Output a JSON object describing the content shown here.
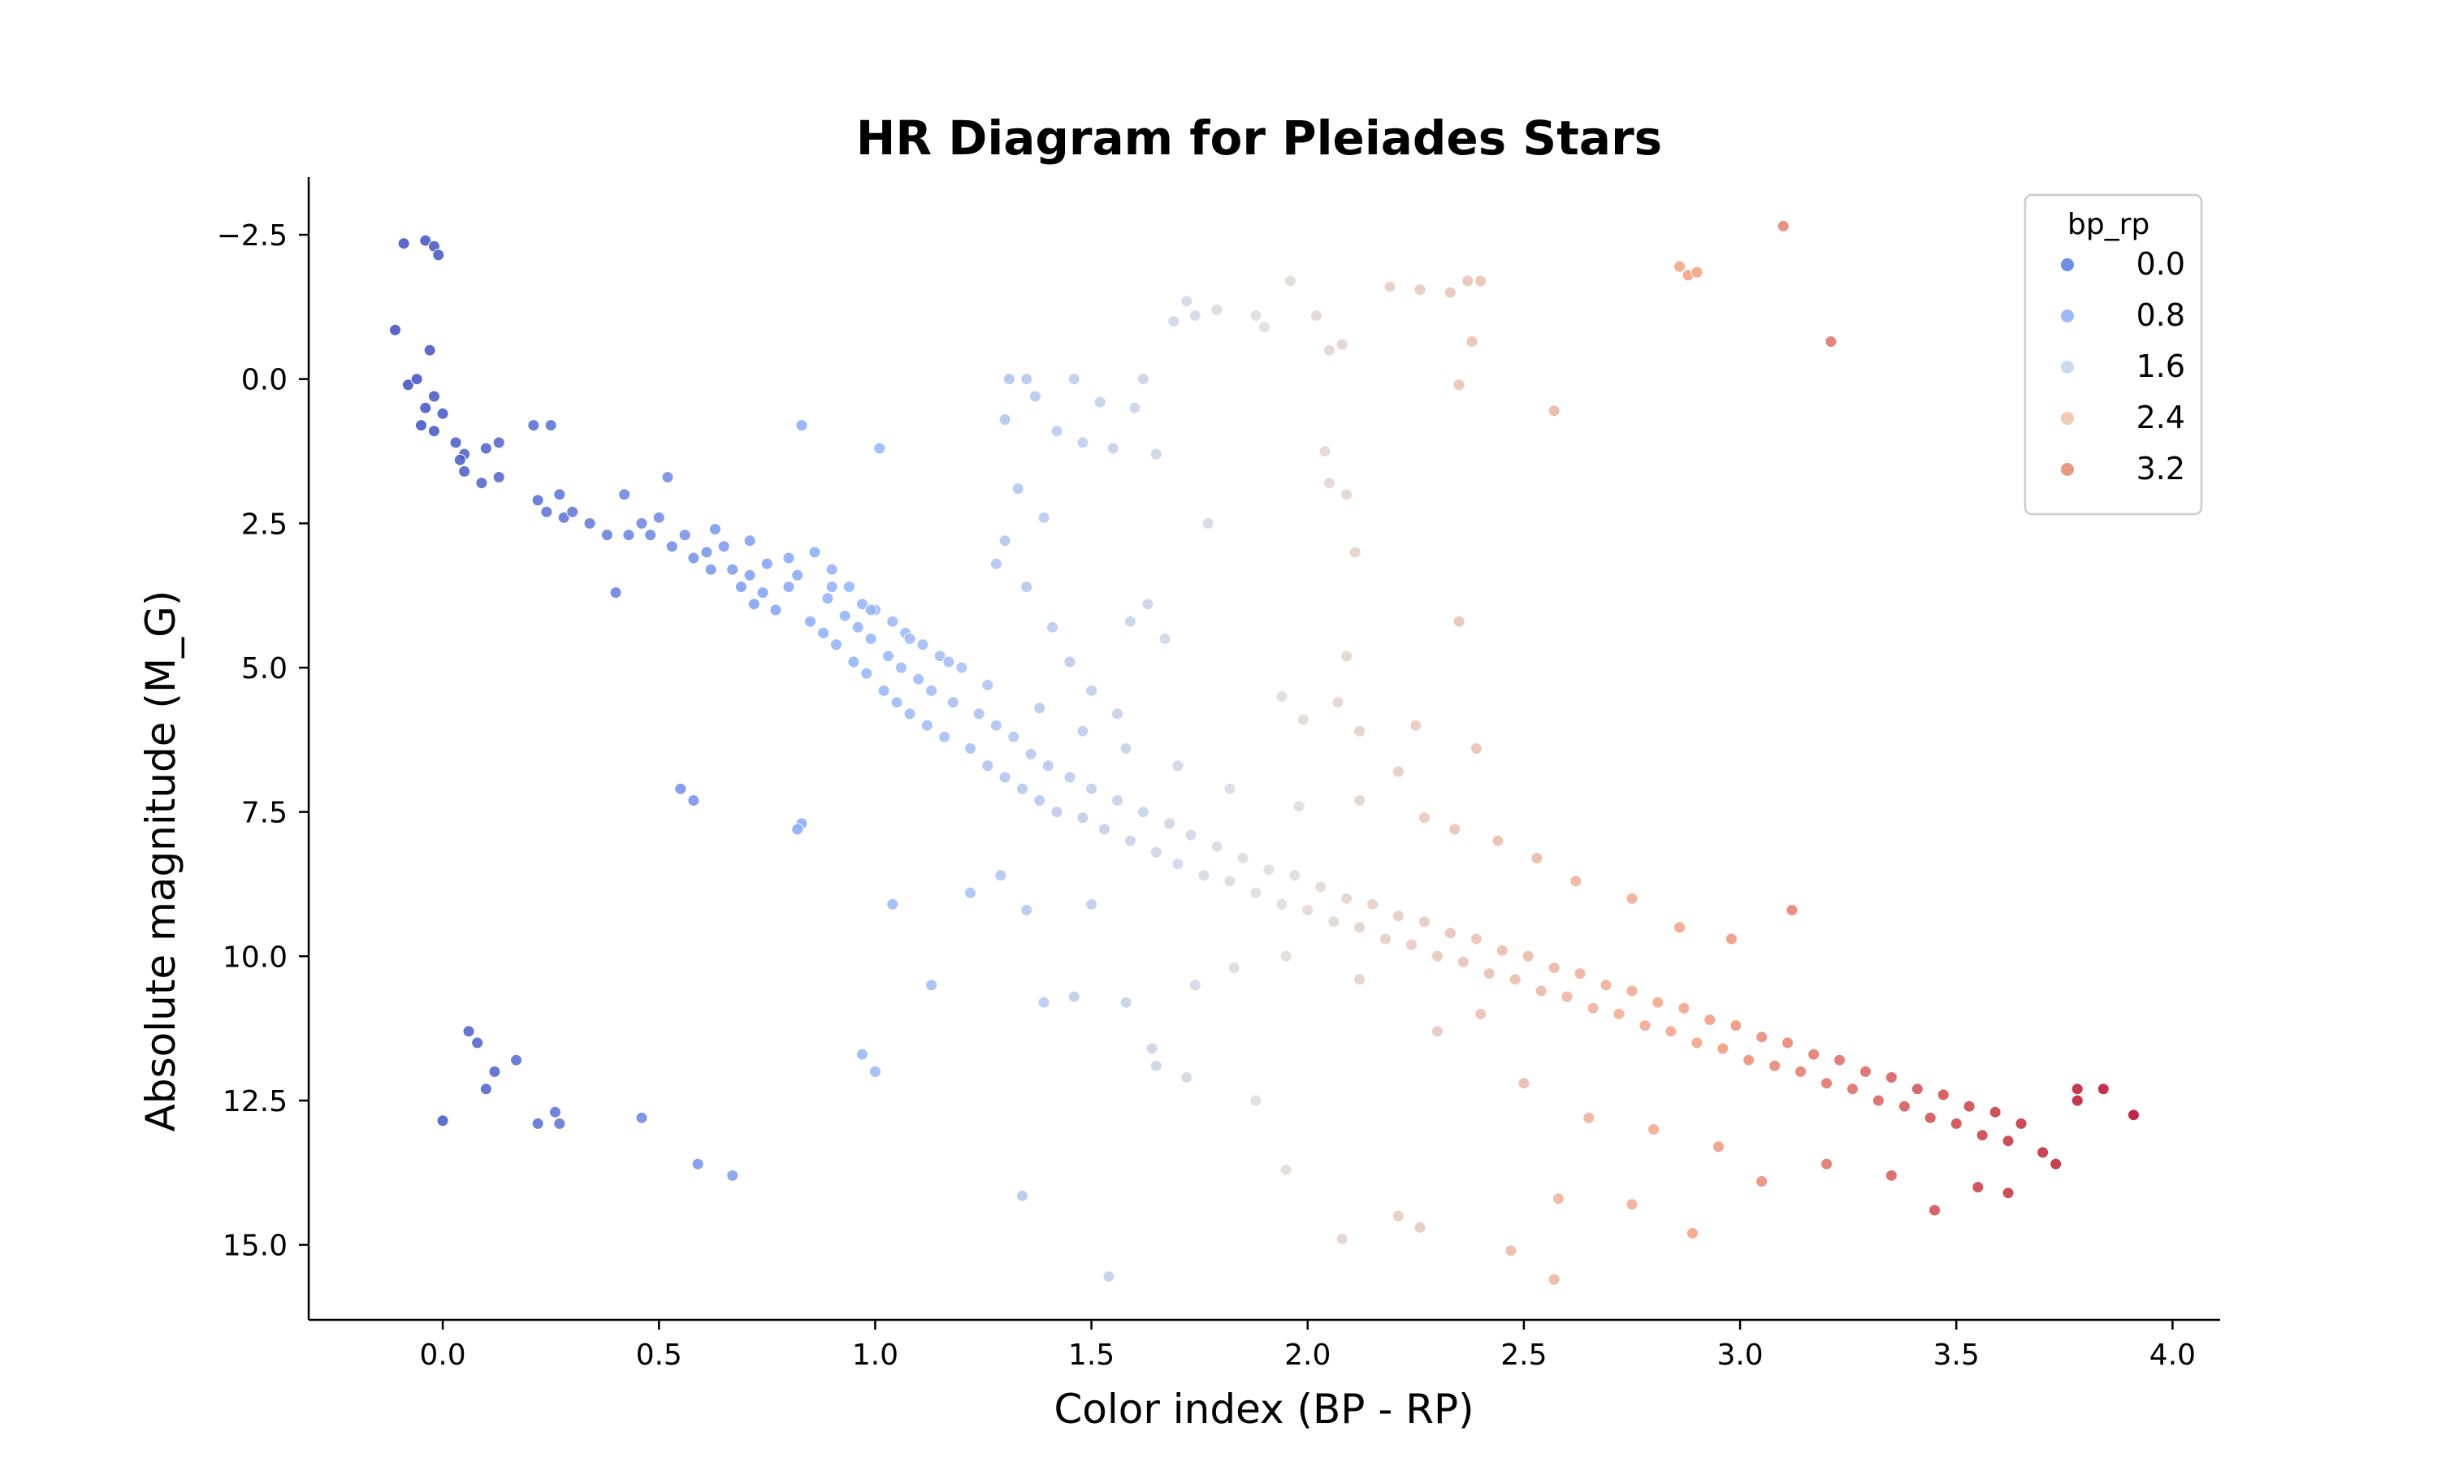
{
  "chart_data": {
    "type": "scatter",
    "title": "HR Diagram for Pleiades Stars",
    "xlabel": "Color index (BP - RP)",
    "ylabel": "Absolute magnitude (M_G)",
    "xlim": [
      -0.31,
      4.11
    ],
    "ylim": [
      16.3,
      -3.5
    ],
    "y_inverted": true,
    "grid": false,
    "x_ticks": [
      0.0,
      0.5,
      1.0,
      1.5,
      2.0,
      2.5,
      3.0,
      3.5,
      4.0
    ],
    "x_tick_labels": [
      "0.0",
      "0.5",
      "1.0",
      "1.5",
      "2.0",
      "2.5",
      "3.0",
      "3.5",
      "4.0"
    ],
    "y_ticks": [
      -2.5,
      0.0,
      2.5,
      5.0,
      7.5,
      10.0,
      12.5,
      15.0
    ],
    "y_tick_labels": [
      "−2.5",
      "0.0",
      "2.5",
      "5.0",
      "7.5",
      "10.0",
      "12.5",
      "15.0"
    ],
    "hue": "bp_rp",
    "colormap": "coolwarm",
    "hue_range": [
      -0.1,
      3.9
    ],
    "legend": {
      "title": "bp_rp",
      "placement": "top-right",
      "entries": [
        {
          "label": "0.0",
          "value": 0.0,
          "color": "#6f8ee5"
        },
        {
          "label": "0.8",
          "value": 0.8,
          "color": "#9ebaf9"
        },
        {
          "label": "1.6",
          "value": 1.6,
          "color": "#cddaf0"
        },
        {
          "label": "2.4",
          "value": 2.4,
          "color": "#f3c9b5"
        },
        {
          "label": "3.2",
          "value": 3.2,
          "color": "#e99a7e"
        }
      ]
    },
    "points": [
      [
        -0.09,
        -2.35
      ],
      [
        -0.04,
        -2.4
      ],
      [
        -0.02,
        -2.3
      ],
      [
        -0.01,
        -2.15
      ],
      [
        -0.11,
        -0.85
      ],
      [
        -0.08,
        0.1
      ],
      [
        -0.06,
        0.0
      ],
      [
        -0.03,
        -0.5
      ],
      [
        -0.02,
        0.3
      ],
      [
        -0.04,
        0.5
      ],
      [
        -0.05,
        0.8
      ],
      [
        -0.02,
        0.9
      ],
      [
        0.0,
        0.6
      ],
      [
        0.03,
        1.1
      ],
      [
        0.05,
        1.3
      ],
      [
        0.04,
        1.4
      ],
      [
        0.05,
        1.6
      ],
      [
        0.1,
        1.2
      ],
      [
        0.13,
        1.1
      ],
      [
        0.09,
        1.8
      ],
      [
        0.13,
        1.7
      ],
      [
        0.21,
        0.8
      ],
      [
        0.25,
        0.8
      ],
      [
        0.22,
        2.1
      ],
      [
        0.24,
        2.3
      ],
      [
        0.27,
        2.0
      ],
      [
        0.28,
        2.4
      ],
      [
        0.3,
        2.3
      ],
      [
        0.34,
        2.5
      ],
      [
        0.38,
        2.7
      ],
      [
        0.42,
        2.0
      ],
      [
        0.43,
        2.7
      ],
      [
        0.4,
        3.7
      ],
      [
        0.46,
        2.5
      ],
      [
        0.48,
        2.7
      ],
      [
        0.5,
        2.4
      ],
      [
        0.52,
        1.7
      ],
      [
        0.53,
        2.9
      ],
      [
        0.56,
        2.7
      ],
      [
        0.58,
        3.1
      ],
      [
        0.61,
        3.0
      ],
      [
        0.62,
        3.3
      ],
      [
        0.65,
        2.9
      ],
      [
        0.67,
        3.3
      ],
      [
        0.69,
        3.6
      ],
      [
        0.71,
        3.4
      ],
      [
        0.72,
        3.9
      ],
      [
        0.74,
        3.7
      ],
      [
        0.75,
        3.2
      ],
      [
        0.77,
        4.0
      ],
      [
        0.8,
        3.6
      ],
      [
        0.82,
        3.4
      ],
      [
        0.83,
        0.8
      ],
      [
        0.83,
        7.7
      ],
      [
        0.82,
        7.8
      ],
      [
        0.85,
        4.2
      ],
      [
        0.86,
        3.0
      ],
      [
        0.88,
        4.4
      ],
      [
        0.89,
        3.8
      ],
      [
        0.9,
        3.3
      ],
      [
        0.91,
        4.6
      ],
      [
        0.93,
        4.1
      ],
      [
        0.94,
        3.6
      ],
      [
        0.95,
        4.9
      ],
      [
        0.96,
        4.3
      ],
      [
        0.97,
        3.9
      ],
      [
        0.98,
        5.1
      ],
      [
        0.99,
        4.5
      ],
      [
        1.0,
        4.0
      ],
      [
        1.01,
        1.2
      ],
      [
        1.02,
        5.4
      ],
      [
        1.03,
        4.8
      ],
      [
        1.04,
        4.2
      ],
      [
        1.05,
        5.6
      ],
      [
        1.06,
        5.0
      ],
      [
        1.07,
        4.4
      ],
      [
        1.08,
        5.8
      ],
      [
        1.1,
        5.2
      ],
      [
        1.11,
        4.6
      ],
      [
        1.12,
        6.0
      ],
      [
        1.13,
        5.4
      ],
      [
        1.15,
        4.8
      ],
      [
        1.16,
        6.2
      ],
      [
        1.18,
        5.6
      ],
      [
        1.2,
        5.0
      ],
      [
        1.22,
        6.4
      ],
      [
        1.24,
        5.8
      ],
      [
        1.26,
        6.7
      ],
      [
        1.28,
        6.0
      ],
      [
        1.3,
        6.9
      ],
      [
        1.32,
        6.2
      ],
      [
        1.34,
        7.1
      ],
      [
        1.36,
        6.5
      ],
      [
        1.38,
        7.3
      ],
      [
        1.4,
        6.7
      ],
      [
        1.42,
        7.5
      ],
      [
        1.45,
        6.9
      ],
      [
        1.48,
        7.6
      ],
      [
        1.5,
        7.1
      ],
      [
        1.53,
        7.8
      ],
      [
        1.56,
        7.3
      ],
      [
        1.59,
        8.0
      ],
      [
        1.62,
        7.5
      ],
      [
        1.65,
        8.2
      ],
      [
        1.68,
        7.7
      ],
      [
        1.7,
        8.4
      ],
      [
        1.73,
        7.9
      ],
      [
        1.76,
        8.6
      ],
      [
        1.79,
        8.1
      ],
      [
        1.82,
        8.7
      ],
      [
        1.85,
        8.3
      ],
      [
        1.88,
        8.9
      ],
      [
        1.91,
        8.5
      ],
      [
        1.94,
        9.1
      ],
      [
        1.97,
        8.6
      ],
      [
        2.0,
        9.2
      ],
      [
        2.03,
        8.8
      ],
      [
        2.06,
        9.4
      ],
      [
        2.09,
        9.0
      ],
      [
        2.12,
        9.5
      ],
      [
        2.15,
        9.1
      ],
      [
        2.18,
        9.7
      ],
      [
        2.21,
        9.3
      ],
      [
        2.24,
        9.8
      ],
      [
        2.27,
        9.4
      ],
      [
        2.3,
        10.0
      ],
      [
        2.33,
        9.6
      ],
      [
        2.36,
        10.1
      ],
      [
        2.39,
        9.7
      ],
      [
        2.42,
        10.3
      ],
      [
        2.45,
        9.9
      ],
      [
        2.48,
        10.4
      ],
      [
        2.51,
        10.0
      ],
      [
        2.54,
        10.6
      ],
      [
        2.57,
        10.2
      ],
      [
        2.6,
        10.7
      ],
      [
        2.63,
        10.3
      ],
      [
        2.66,
        10.9
      ],
      [
        2.69,
        10.5
      ],
      [
        2.72,
        11.0
      ],
      [
        2.75,
        10.6
      ],
      [
        2.78,
        11.2
      ],
      [
        2.81,
        10.8
      ],
      [
        2.84,
        11.3
      ],
      [
        2.87,
        10.9
      ],
      [
        2.9,
        11.5
      ],
      [
        2.93,
        11.1
      ],
      [
        2.96,
        11.6
      ],
      [
        2.99,
        11.2
      ],
      [
        3.02,
        11.8
      ],
      [
        3.05,
        11.4
      ],
      [
        3.08,
        11.9
      ],
      [
        3.11,
        11.5
      ],
      [
        3.14,
        12.0
      ],
      [
        3.17,
        11.7
      ],
      [
        3.2,
        12.2
      ],
      [
        3.23,
        11.8
      ],
      [
        3.26,
        12.3
      ],
      [
        3.29,
        12.0
      ],
      [
        3.32,
        12.5
      ],
      [
        3.35,
        12.1
      ],
      [
        3.38,
        12.6
      ],
      [
        3.41,
        12.3
      ],
      [
        3.44,
        12.8
      ],
      [
        3.47,
        12.4
      ],
      [
        3.5,
        12.9
      ],
      [
        3.53,
        12.6
      ],
      [
        3.56,
        13.1
      ],
      [
        3.59,
        12.7
      ],
      [
        3.62,
        13.2
      ],
      [
        3.65,
        12.9
      ],
      [
        3.7,
        13.4
      ],
      [
        3.73,
        13.6
      ],
      [
        3.78,
        12.3
      ],
      [
        3.78,
        12.5
      ],
      [
        3.84,
        12.3
      ],
      [
        3.91,
        12.75
      ],
      [
        3.1,
        -2.65
      ],
      [
        3.21,
        -0.65
      ],
      [
        2.86,
        -1.95
      ],
      [
        2.88,
        -1.8
      ],
      [
        2.9,
        -1.85
      ],
      [
        2.57,
        0.55
      ],
      [
        2.4,
        -1.7
      ],
      [
        2.37,
        -1.7
      ],
      [
        2.38,
        -0.65
      ],
      [
        2.35,
        0.1
      ],
      [
        2.33,
        -1.5
      ],
      [
        2.26,
        -1.55
      ],
      [
        2.19,
        -1.6
      ],
      [
        1.72,
        -1.35
      ],
      [
        1.74,
        -1.1
      ],
      [
        1.69,
        -1.0
      ],
      [
        1.79,
        -1.2
      ],
      [
        1.96,
        -1.7
      ],
      [
        1.88,
        -1.1
      ],
      [
        1.9,
        -0.9
      ],
      [
        2.02,
        -1.1
      ],
      [
        2.05,
        -0.5
      ],
      [
        2.08,
        -0.6
      ],
      [
        1.31,
        0.0
      ],
      [
        1.35,
        0.0
      ],
      [
        1.37,
        0.3
      ],
      [
        1.3,
        0.7
      ],
      [
        1.42,
        0.9
      ],
      [
        1.48,
        1.1
      ],
      [
        1.52,
        0.4
      ],
      [
        1.46,
        0.0
      ],
      [
        1.55,
        1.2
      ],
      [
        1.6,
        0.5
      ],
      [
        1.62,
        0.0
      ],
      [
        1.65,
        1.3
      ],
      [
        1.33,
        1.9
      ],
      [
        1.39,
        2.4
      ],
      [
        1.3,
        2.8
      ],
      [
        1.28,
        3.2
      ],
      [
        1.35,
        3.6
      ],
      [
        1.41,
        4.3
      ],
      [
        1.45,
        4.9
      ],
      [
        1.5,
        5.4
      ],
      [
        1.56,
        5.8
      ],
      [
        1.59,
        4.2
      ],
      [
        1.63,
        3.9
      ],
      [
        1.67,
        4.5
      ],
      [
        1.77,
        2.5
      ],
      [
        1.94,
        5.5
      ],
      [
        1.99,
        5.9
      ],
      [
        2.11,
        3.0
      ],
      [
        2.09,
        4.8
      ],
      [
        2.07,
        5.6
      ],
      [
        2.12,
        6.1
      ],
      [
        2.21,
        6.8
      ],
      [
        2.25,
        6.0
      ],
      [
        2.35,
        4.2
      ],
      [
        2.39,
        6.4
      ],
      [
        2.04,
        1.25
      ],
      [
        2.05,
        1.8
      ],
      [
        2.09,
        2.0
      ],
      [
        0.55,
        7.1
      ],
      [
        0.58,
        7.3
      ],
      [
        1.5,
        9.1
      ],
      [
        1.58,
        10.8
      ],
      [
        1.64,
        11.6
      ],
      [
        1.65,
        11.9
      ],
      [
        1.72,
        12.1
      ],
      [
        1.88,
        12.5
      ],
      [
        1.95,
        13.7
      ],
      [
        2.08,
        14.9
      ],
      [
        2.21,
        14.5
      ],
      [
        2.26,
        14.7
      ],
      [
        2.47,
        15.1
      ],
      [
        2.57,
        15.6
      ],
      [
        2.58,
        14.2
      ],
      [
        2.75,
        14.3
      ],
      [
        2.89,
        14.8
      ],
      [
        1.54,
        15.55
      ],
      [
        1.34,
        14.15
      ],
      [
        1.13,
        10.5
      ],
      [
        1.0,
        12.0
      ],
      [
        0.97,
        11.7
      ],
      [
        0.67,
        13.8
      ],
      [
        0.59,
        13.6
      ],
      [
        0.46,
        12.8
      ],
      [
        0.27,
        12.9
      ],
      [
        0.26,
        12.7
      ],
      [
        0.22,
        12.9
      ],
      [
        0.17,
        11.8
      ],
      [
        0.12,
        12.0
      ],
      [
        0.1,
        12.3
      ],
      [
        0.08,
        11.5
      ],
      [
        0.06,
        11.3
      ],
      [
        0.0,
        12.85
      ],
      [
        1.04,
        9.1
      ],
      [
        1.22,
        8.9
      ],
      [
        1.29,
        8.6
      ],
      [
        1.35,
        9.2
      ],
      [
        1.39,
        10.8
      ],
      [
        1.46,
        10.7
      ],
      [
        1.74,
        10.5
      ],
      [
        1.83,
        10.2
      ],
      [
        1.95,
        10.0
      ],
      [
        2.12,
        10.4
      ],
      [
        2.3,
        11.3
      ],
      [
        2.4,
        11.0
      ],
      [
        2.5,
        12.2
      ],
      [
        2.65,
        12.8
      ],
      [
        2.8,
        13.0
      ],
      [
        2.95,
        13.3
      ],
      [
        3.05,
        13.9
      ],
      [
        3.2,
        13.6
      ],
      [
        3.35,
        13.8
      ],
      [
        3.45,
        14.4
      ],
      [
        3.55,
        14.0
      ],
      [
        3.62,
        14.1
      ],
      [
        3.12,
        9.2
      ],
      [
        2.98,
        9.7
      ],
      [
        2.86,
        9.5
      ],
      [
        2.75,
        9.0
      ],
      [
        2.62,
        8.7
      ],
      [
        2.53,
        8.3
      ],
      [
        2.44,
        8.0
      ],
      [
        2.34,
        7.8
      ],
      [
        2.27,
        7.6
      ],
      [
        2.12,
        7.3
      ],
      [
        1.98,
        7.4
      ],
      [
        1.82,
        7.1
      ],
      [
        1.7,
        6.7
      ],
      [
        1.58,
        6.4
      ],
      [
        1.48,
        6.1
      ],
      [
        1.38,
        5.7
      ],
      [
        1.26,
        5.3
      ],
      [
        1.17,
        4.9
      ],
      [
        1.08,
        4.5
      ],
      [
        0.99,
        4.0
      ],
      [
        0.9,
        3.6
      ],
      [
        0.8,
        3.1
      ],
      [
        0.71,
        2.8
      ],
      [
        0.63,
        2.6
      ]
    ]
  }
}
